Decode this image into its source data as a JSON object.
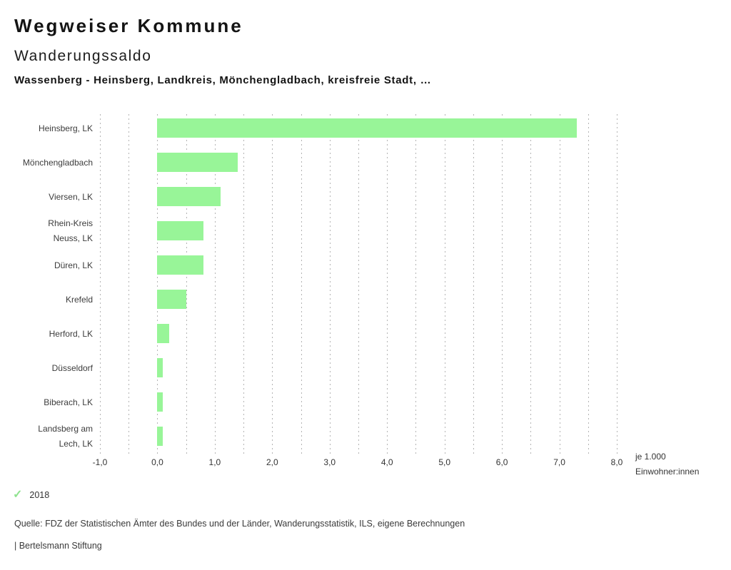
{
  "header": {
    "brand": "Wegweiser Kommune",
    "title": "Wanderungssaldo",
    "subtitle": "Wassenberg - Heinsberg, Landkreis, Mönchengladbach, kreisfreie Stadt, …"
  },
  "chart_data": {
    "type": "bar",
    "orientation": "horizontal",
    "title": "Wanderungssaldo",
    "categories": [
      "Heinsberg, LK",
      "Mönchengladbach",
      "Viersen, LK",
      "Rhein-Kreis Neuss, LK",
      "Düren, LK",
      "Krefeld",
      "Herford, LK",
      "Düsseldorf",
      "Biberach, LK",
      "Landsberg am Lech, LK"
    ],
    "category_display_lines": [
      [
        "Heinsberg, LK"
      ],
      [
        "Mönchengladbach"
      ],
      [
        "Viersen, LK"
      ],
      [
        "Rhein-Kreis",
        "Neuss, LK"
      ],
      [
        "Düren, LK"
      ],
      [
        "Krefeld"
      ],
      [
        "Herford, LK"
      ],
      [
        "Düsseldorf"
      ],
      [
        "Biberach, LK"
      ],
      [
        "Landsberg am",
        "Lech, LK"
      ]
    ],
    "series": [
      {
        "name": "2018",
        "values": [
          7.3,
          1.4,
          1.1,
          0.8,
          0.8,
          0.5,
          0.2,
          0.1,
          0.1,
          0.1
        ]
      }
    ],
    "xlim": [
      -1.0,
      8.0
    ],
    "grid_step": 0.5,
    "xticks": [
      {
        "value": -1,
        "label": "-1,0"
      },
      {
        "value": 0,
        "label": "0,0"
      },
      {
        "value": 1,
        "label": "1,0"
      },
      {
        "value": 2,
        "label": "2,0"
      },
      {
        "value": 3,
        "label": "3,0"
      },
      {
        "value": 4,
        "label": "4,0"
      },
      {
        "value": 5,
        "label": "5,0"
      },
      {
        "value": 6,
        "label": "6,0"
      },
      {
        "value": 7,
        "label": "7,0"
      },
      {
        "value": 8,
        "label": "8,0"
      }
    ],
    "unit_label_lines": [
      "je 1.000",
      "Einwohner:innen"
    ],
    "bar_color": "#98f598",
    "grid": "vertical dotted",
    "legend_position": "bottom-left"
  },
  "legend": {
    "check_icon": "check-icon",
    "check_color": "#8fe38f",
    "year": "2018"
  },
  "footer": {
    "source": "Quelle: FDZ der Statistischen Ämter des Bundes und der Länder, Wanderungsstatistik, ILS, eigene Berechnungen",
    "attribution": "| Bertelsmann Stiftung"
  }
}
